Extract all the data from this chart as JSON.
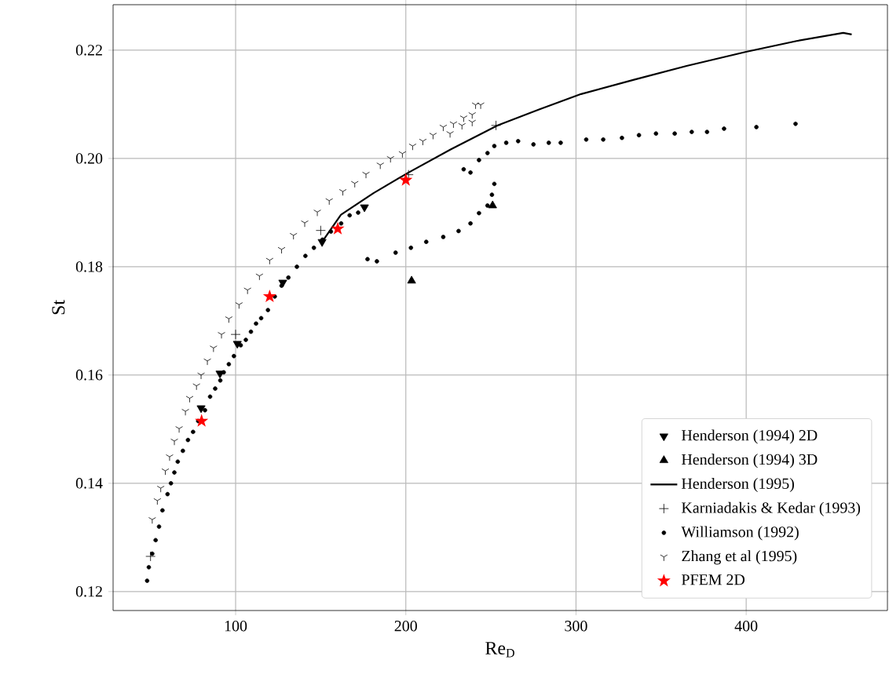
{
  "chart_data": {
    "type": "scatter",
    "xlabel": "Re$_{D}$",
    "ylabel": "St",
    "xlim": [
      28,
      483
    ],
    "ylim": [
      0.1165,
      0.2284
    ],
    "xticks": [
      100,
      200,
      300,
      400
    ],
    "yticks": [
      0.12,
      0.14,
      0.16,
      0.18,
      {
        "value": 0.2,
        "label": "0.20"
      },
      0.22
    ],
    "grid": true,
    "legend": "bottom right",
    "series": [
      {
        "name": "Henderson (1994) 2D",
        "color": "#000000",
        "marker": "triangle_down",
        "x": [
          79.7,
          90.8,
          101,
          127.7,
          150.8,
          175.7
        ],
        "values": [
          0.1539,
          0.1603,
          0.1658,
          0.1771,
          0.1846,
          0.191
        ]
      },
      {
        "name": "Henderson (1994) 3D",
        "color": "#000000",
        "marker": "triangle",
        "x": [
          203.4,
          251
        ],
        "values": [
          0.1774,
          0.1913
        ]
      },
      {
        "name": "Henderson (1995)",
        "color": "#000000",
        "type": "line",
        "marker": "none",
        "line_style": "solid",
        "x": [
          151.7,
          161.9,
          181,
          201.6,
          226.5,
          254,
          278,
          303,
          333.6,
          365,
          400,
          429.6,
          457,
          462
        ],
        "values": [
          0.185,
          0.1896,
          0.1936,
          0.1974,
          0.2017,
          0.2061,
          0.209,
          0.2119,
          0.2145,
          0.2171,
          0.2197,
          0.2217,
          0.2232,
          0.2229
        ]
      },
      {
        "name": "Karniadakis & Kedar (1993)",
        "color": "#000000",
        "marker": "plus",
        "x": [
          50,
          100,
          150,
          201.6,
          253
        ],
        "values": [
          0.1265,
          0.1675,
          0.1867,
          0.197,
          0.2061
        ]
      },
      {
        "name": "Williamson (1992)",
        "color": "#000000",
        "marker": "circle",
        "x": [
          48,
          49,
          51,
          53,
          55,
          57,
          60,
          62,
          64,
          66,
          69,
          72,
          75,
          78,
          82,
          85,
          88,
          91,
          93,
          96,
          99,
          103,
          106,
          109,
          112,
          115,
          119,
          123,
          127,
          131,
          136,
          141,
          146,
          151,
          156,
          162,
          167,
          172,
          176,
          177.5,
          183,
          194,
          203,
          212,
          222,
          231,
          238,
          243,
          248,
          250.6,
          252,
          234,
          238,
          243,
          248,
          252,
          259,
          266,
          275,
          284,
          291,
          306,
          316,
          327,
          337,
          347,
          358,
          368,
          377,
          387,
          406,
          429
        ],
        "values": [
          0.122,
          0.1245,
          0.127,
          0.1295,
          0.132,
          0.135,
          0.138,
          0.14,
          0.142,
          0.144,
          0.146,
          0.148,
          0.1495,
          0.1515,
          0.1535,
          0.156,
          0.1575,
          0.159,
          0.1605,
          0.162,
          0.1635,
          0.1655,
          0.1665,
          0.168,
          0.1695,
          0.1705,
          0.172,
          0.1745,
          0.1765,
          0.178,
          0.18,
          0.182,
          0.1835,
          0.185,
          0.1865,
          0.188,
          0.1895,
          0.19,
          0.191,
          0.1814,
          0.181,
          0.1826,
          0.1835,
          0.1846,
          0.1855,
          0.1866,
          0.188,
          0.1899,
          0.1913,
          0.1933,
          0.1953,
          0.198,
          0.1974,
          0.1997,
          0.201,
          0.2023,
          0.2029,
          0.2032,
          0.2026,
          0.2029,
          0.2029,
          0.2035,
          0.2035,
          0.2038,
          0.2043,
          0.2046,
          0.2046,
          0.2049,
          0.2049,
          0.2055,
          0.2058,
          0.2064
        ]
      },
      {
        "name": "Zhang et al (1995)",
        "color": "#000000",
        "marker": "cross",
        "x": [
          51,
          54,
          56,
          58.7,
          61.2,
          64,
          66.8,
          70.5,
          73,
          77,
          79.7,
          83.4,
          87,
          91.7,
          96,
          102,
          107,
          114,
          120,
          127,
          134,
          140.6,
          148,
          155,
          163,
          170,
          176.6,
          185,
          191,
          198,
          204,
          210,
          216,
          222,
          226,
          228,
          233,
          234,
          239,
          239,
          241,
          244
        ],
        "values": [
          0.1333,
          0.1368,
          0.1391,
          0.1423,
          0.1449,
          0.1478,
          0.1501,
          0.1533,
          0.1557,
          0.158,
          0.16,
          0.1626,
          0.165,
          0.1675,
          0.1704,
          0.173,
          0.1757,
          0.1783,
          0.1812,
          0.1832,
          0.1858,
          0.1881,
          0.1901,
          0.1922,
          0.1939,
          0.1954,
          0.1971,
          0.1988,
          0.2,
          0.2009,
          0.2023,
          0.2032,
          0.2043,
          0.2058,
          0.2046,
          0.2064,
          0.2061,
          0.2075,
          0.2067,
          0.2081,
          0.2099,
          0.2099
        ]
      },
      {
        "name": "PFEM 2D",
        "color": "#ff0000",
        "marker": "star",
        "x": [
          80,
          120,
          160,
          200
        ],
        "values": [
          0.1515,
          0.1745,
          0.187,
          0.196
        ]
      }
    ]
  }
}
